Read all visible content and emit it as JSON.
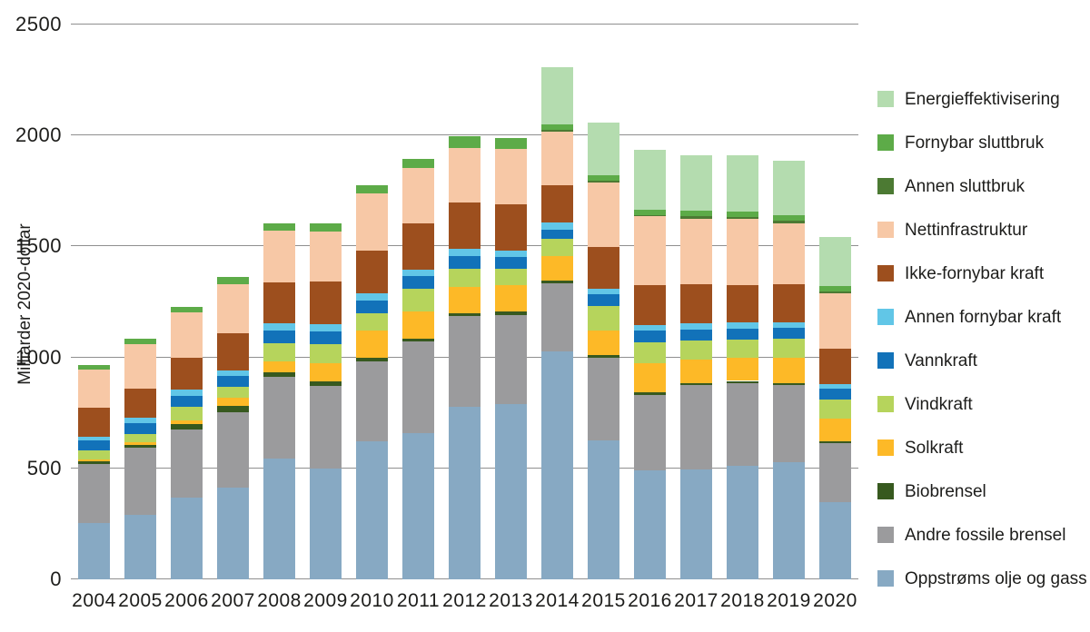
{
  "page": {
    "background": "#ffffff",
    "text_color": "#1d1d1b",
    "gridline_color": "#8f8f8f"
  },
  "chart_data": {
    "type": "bar",
    "stacked": true,
    "title": "",
    "xlabel": "",
    "ylabel": "Milliarder 2020-dollar",
    "ylim": [
      0,
      2500
    ],
    "yticks": [
      0,
      500,
      1000,
      1500,
      2000,
      2500
    ],
    "grid": true,
    "legend_position": "right",
    "categories": [
      "2004",
      "2005",
      "2006",
      "2007",
      "2008",
      "2009",
      "2010",
      "2011",
      "2012",
      "2013",
      "2014",
      "2015",
      "2016",
      "2017",
      "2018",
      "2019",
      "2020"
    ],
    "series": [
      {
        "name": "Oppstrøms olje og gass",
        "color": "#87a9c3",
        "values": [
          255,
          289,
          368,
          414,
          545,
          499,
          620,
          658,
          776,
          789,
          1025,
          626,
          490,
          495,
          513,
          527,
          348
        ]
      },
      {
        "name": "Andre fossile brensel",
        "color": "#9b9b9d",
        "values": [
          265,
          303,
          309,
          340,
          366,
          371,
          363,
          412,
          409,
          400,
          310,
          372,
          340,
          380,
          372,
          348,
          265
        ]
      },
      {
        "name": "Biobrensel",
        "color": "#37591f",
        "values": [
          11,
          13,
          23,
          27,
          23,
          23,
          16,
          14,
          13,
          16,
          13,
          13,
          14,
          10,
          9,
          10,
          9
        ]
      },
      {
        "name": "Solkraft",
        "color": "#fdb927",
        "values": [
          10,
          13,
          18,
          36,
          49,
          79,
          123,
          125,
          119,
          120,
          109,
          112,
          129,
          104,
          104,
          113,
          104
        ]
      },
      {
        "name": "Vindkraft",
        "color": "#b6d45c",
        "values": [
          38,
          38,
          58,
          50,
          82,
          88,
          75,
          100,
          82,
          74,
          79,
          108,
          93,
          86,
          84,
          86,
          84
        ]
      },
      {
        "name": "Vannkraft",
        "color": "#1272b9",
        "values": [
          46,
          48,
          50,
          48,
          57,
          59,
          61,
          58,
          58,
          52,
          41,
          52,
          54,
          50,
          47,
          49,
          48
        ]
      },
      {
        "name": "Annen fornybar kraft",
        "color": "#61c6e7",
        "values": [
          18,
          23,
          28,
          27,
          30,
          30,
          30,
          27,
          32,
          30,
          29,
          27,
          27,
          27,
          28,
          24,
          23
        ]
      },
      {
        "name": "Ikke-fornybar kraft",
        "color": "#9d4f1e",
        "values": [
          129,
          134,
          146,
          166,
          184,
          195,
          195,
          210,
          210,
          208,
          168,
          186,
          179,
          177,
          169,
          172,
          157
        ]
      },
      {
        "name": "Nettinfrastruktur",
        "color": "#f7c8a6",
        "values": [
          173,
          197,
          201,
          222,
          236,
          223,
          255,
          250,
          245,
          252,
          243,
          293,
          310,
          297,
          297,
          276,
          250
        ]
      },
      {
        "name": "Annen sluttbruk",
        "color": "#4c7a33",
        "values": [
          0,
          0,
          0,
          0,
          0,
          0,
          0,
          0,
          0,
          0,
          8,
          8,
          6,
          9,
          9,
          10,
          9
        ]
      },
      {
        "name": "Fornybar sluttbruk",
        "color": "#5dab48",
        "values": [
          20,
          25,
          27,
          34,
          31,
          36,
          38,
          41,
          52,
          48,
          25,
          25,
          24,
          28,
          27,
          27,
          23
        ]
      },
      {
        "name": "Energieffektivisering",
        "color": "#b4dcaf",
        "values": [
          0,
          0,
          0,
          0,
          0,
          0,
          0,
          0,
          0,
          0,
          258,
          236,
          268,
          248,
          252,
          244,
          221
        ]
      }
    ],
    "legend_items": [
      {
        "label": "Energieffektivisering",
        "color": "#b4dcaf"
      },
      {
        "label": "Fornybar sluttbruk",
        "color": "#5dab48"
      },
      {
        "label": "Annen sluttbruk",
        "color": "#4c7a33"
      },
      {
        "label": "Nettinfrastruktur",
        "color": "#f7c8a6"
      },
      {
        "label": "Ikke-fornybar kraft",
        "color": "#9d4f1e"
      },
      {
        "label": "Annen fornybar kraft",
        "color": "#61c6e7"
      },
      {
        "label": "Vannkraft",
        "color": "#1272b9"
      },
      {
        "label": "Vindkraft",
        "color": "#b6d45c"
      },
      {
        "label": "Solkraft",
        "color": "#fdb927"
      },
      {
        "label": "Biobrensel",
        "color": "#37591f"
      },
      {
        "label": "Andre fossile brensel",
        "color": "#9b9b9d"
      },
      {
        "label": "Oppstrøms olje og gass",
        "color": "#87a9c3"
      }
    ]
  }
}
